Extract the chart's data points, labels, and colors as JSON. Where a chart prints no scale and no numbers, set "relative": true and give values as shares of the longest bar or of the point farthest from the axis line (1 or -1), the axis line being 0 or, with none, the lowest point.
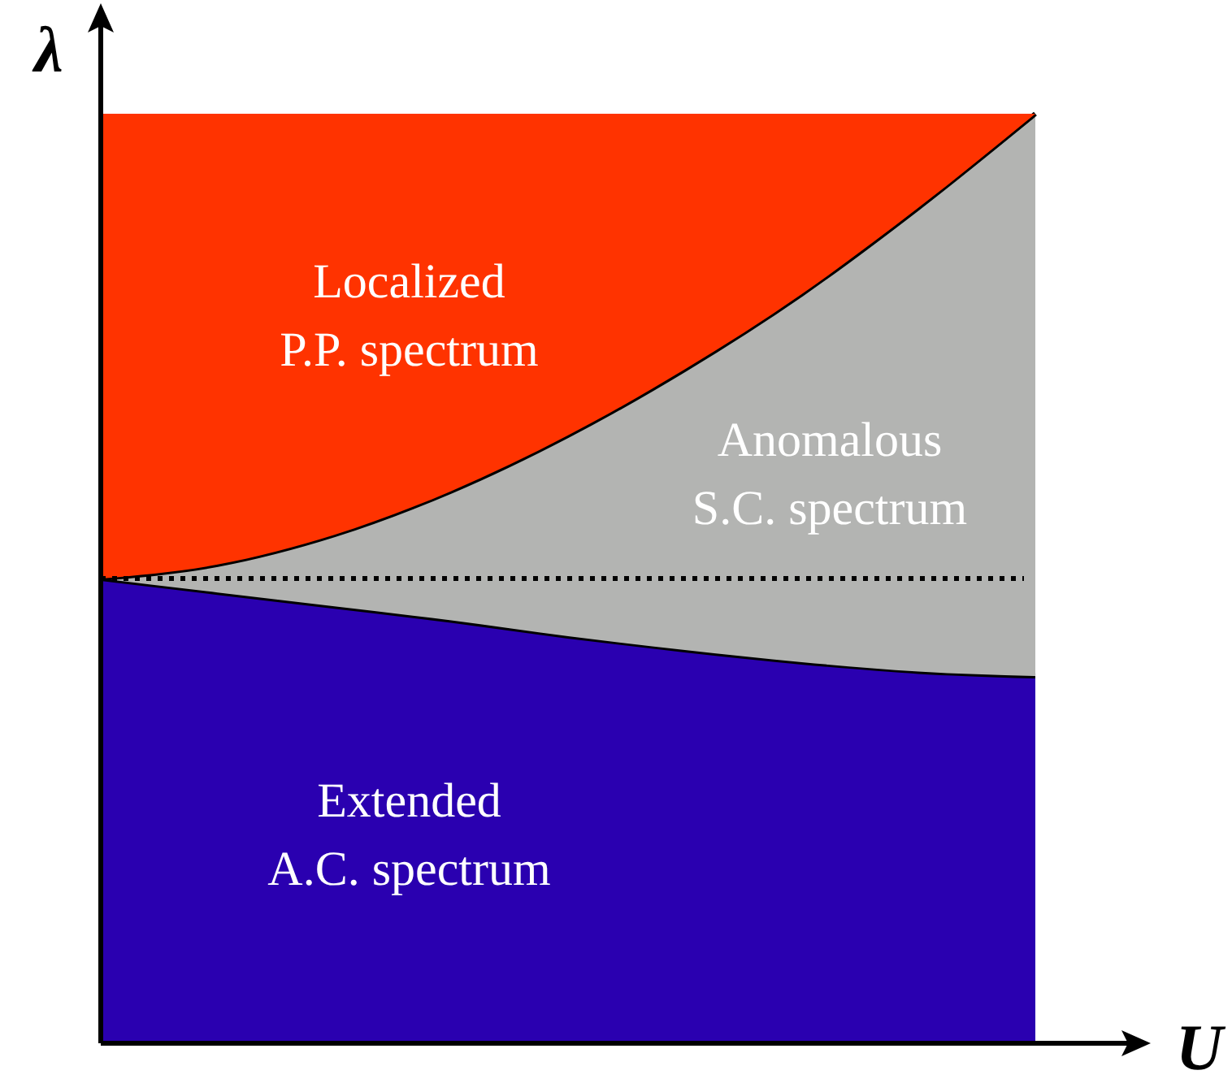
{
  "chart_data": {
    "type": "area",
    "stacked": true,
    "relative": true,
    "xlabel": "U",
    "ylabel": "λ",
    "categories": [
      null,
      null,
      null,
      null,
      null,
      null,
      null,
      null,
      null
    ],
    "series": [
      {
        "name": "Extended A.C. spectrum",
        "color": "#2a00b0",
        "values": [
          0.5,
          0.485,
          0.47,
          0.455,
          0.438,
          0.423,
          0.41,
          0.4,
          0.395
        ]
      },
      {
        "name": "Anomalous S.C. spectrum",
        "color": "#b3b4b2",
        "values": [
          0,
          0.03,
          0.077,
          0.139,
          0.216,
          0.302,
          0.396,
          0.499,
          0.605
        ]
      },
      {
        "name": "Localized P.P. spectrum",
        "color": "#ff3300",
        "values": [
          0.5,
          0.485,
          0.453,
          0.406,
          0.346,
          0.275,
          0.194,
          0.101,
          0
        ]
      }
    ],
    "ref_lines": [
      {
        "axis": "y",
        "value": 0.5,
        "line_style": "dotted",
        "color": "#000000"
      }
    ]
  }
}
